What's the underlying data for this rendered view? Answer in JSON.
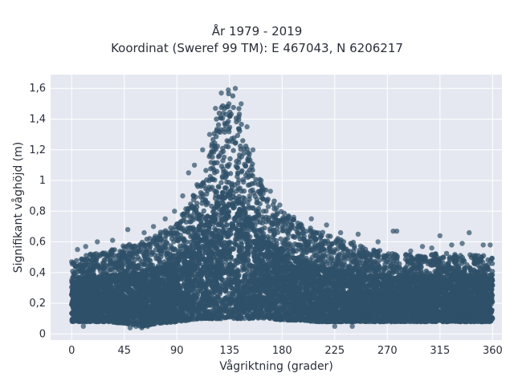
{
  "chart_data": {
    "type": "scatter",
    "title": "År 1979 - 2019",
    "subtitle": "Koordinat (Sweref 99 TM): E 467043, N 6206217",
    "xlabel": "Vågriktning (grader)",
    "ylabel": "Signifikant våghöjd (m)",
    "xlim": [
      -18,
      368
    ],
    "ylim": [
      -0.04,
      1.69
    ],
    "xticks": [
      0,
      45,
      90,
      135,
      180,
      225,
      270,
      315,
      360
    ],
    "xtick_labels": [
      "0",
      "45",
      "90",
      "135",
      "180",
      "225",
      "270",
      "315",
      "360"
    ],
    "yticks": [
      0,
      0.2,
      0.4,
      0.6,
      0.8,
      1.0,
      1.2,
      1.4,
      1.6
    ],
    "ytick_labels": [
      "0",
      "0,2",
      "0,4",
      "0,6",
      "0,8",
      "1",
      "1,2",
      "1,4",
      "1,6"
    ],
    "grid": true,
    "marker_color": "#2f5068",
    "plot_bg": "#e5e8f0",
    "envelope": {
      "x": [
        0,
        15,
        30,
        45,
        60,
        75,
        90,
        100,
        110,
        120,
        125,
        130,
        135,
        140,
        145,
        150,
        160,
        170,
        180,
        195,
        210,
        225,
        240,
        255,
        270,
        285,
        300,
        315,
        330,
        345,
        360
      ],
      "y_upper": [
        0.47,
        0.52,
        0.55,
        0.58,
        0.6,
        0.66,
        0.72,
        0.85,
        1.02,
        1.25,
        1.45,
        1.55,
        1.58,
        1.55,
        1.42,
        1.25,
        1.02,
        0.9,
        0.8,
        0.72,
        0.68,
        0.63,
        0.6,
        0.56,
        0.53,
        0.52,
        0.51,
        0.53,
        0.52,
        0.52,
        0.5
      ],
      "y_lower": [
        0.08,
        0.08,
        0.08,
        0.07,
        0.05,
        0.07,
        0.08,
        0.09,
        0.1,
        0.1,
        0.1,
        0.1,
        0.1,
        0.1,
        0.1,
        0.1,
        0.1,
        0.1,
        0.09,
        0.09,
        0.08,
        0.08,
        0.08,
        0.08,
        0.08,
        0.08,
        0.08,
        0.08,
        0.08,
        0.08,
        0.08
      ]
    },
    "outliers": [
      [
        0,
        0.47
      ],
      [
        5,
        0.55
      ],
      [
        12,
        0.57
      ],
      [
        22,
        0.6
      ],
      [
        35,
        0.61
      ],
      [
        48,
        0.68
      ],
      [
        62,
        0.66
      ],
      [
        70,
        0.7
      ],
      [
        80,
        0.75
      ],
      [
        88,
        0.8
      ],
      [
        95,
        0.9
      ],
      [
        100,
        1.05
      ],
      [
        105,
        1.1
      ],
      [
        112,
        1.2
      ],
      [
        118,
        1.3
      ],
      [
        123,
        1.47
      ],
      [
        128,
        1.57
      ],
      [
        134,
        1.59
      ],
      [
        140,
        1.6
      ],
      [
        145,
        1.5
      ],
      [
        150,
        1.35
      ],
      [
        155,
        1.2
      ],
      [
        162,
        1.0
      ],
      [
        170,
        0.93
      ],
      [
        178,
        0.84
      ],
      [
        190,
        0.76
      ],
      [
        205,
        0.75
      ],
      [
        218,
        0.71
      ],
      [
        230,
        0.66
      ],
      [
        245,
        0.65
      ],
      [
        262,
        0.6
      ],
      [
        275,
        0.67
      ],
      [
        278,
        0.67
      ],
      [
        290,
        0.54
      ],
      [
        300,
        0.57
      ],
      [
        308,
        0.56
      ],
      [
        315,
        0.64
      ],
      [
        325,
        0.58
      ],
      [
        334,
        0.59
      ],
      [
        340,
        0.66
      ],
      [
        352,
        0.58
      ],
      [
        358,
        0.58
      ],
      [
        50,
        0.04
      ],
      [
        55,
        0.05
      ],
      [
        60,
        0.04
      ],
      [
        65,
        0.05
      ],
      [
        10,
        0.05
      ],
      [
        225,
        0.05
      ],
      [
        240,
        0.05
      ]
    ]
  }
}
